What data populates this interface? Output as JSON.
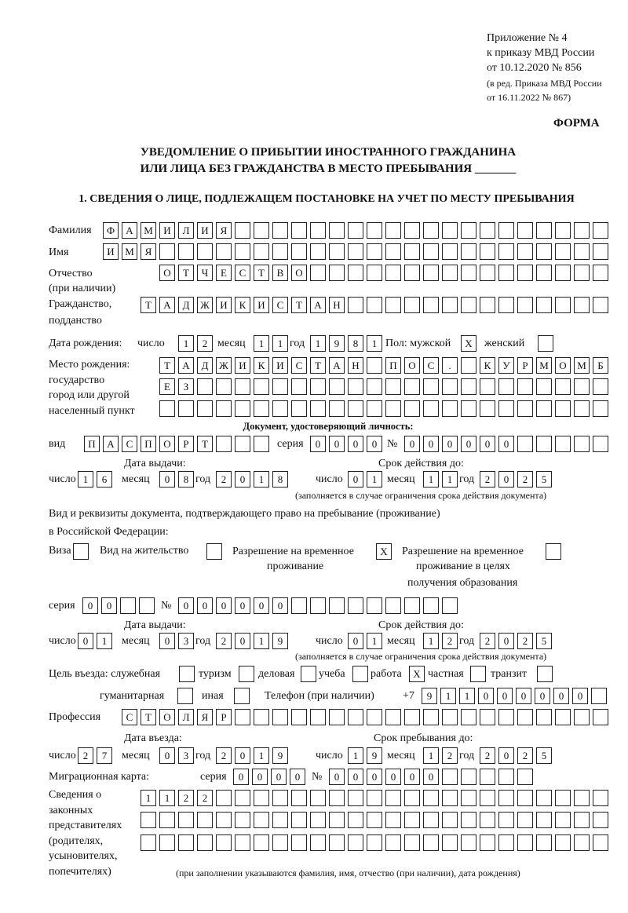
{
  "header": {
    "appendix": "Приложение № 4",
    "order": "к приказу МВД России",
    "order_date": "от 10.12.2020 № 856",
    "edition": "(в ред. Приказа МВД России",
    "edition_date": "от 16.11.2022 № 867)",
    "form_label": "ФОРМА"
  },
  "title": {
    "line1": "УВЕДОМЛЕНИЕ О ПРИБЫТИИ ИНОСТРАННОГО ГРАЖДАНИНА",
    "line2": "ИЛИ ЛИЦА БЕЗ ГРАЖДАНСТВА В МЕСТО ПРЕБЫВАНИЯ _______"
  },
  "section1": "1. СВЕДЕНИЯ О ЛИЦЕ, ПОДЛЕЖАЩЕМ ПОСТАНОВКЕ НА УЧЕТ ПО МЕСТУ ПРЕБЫВАНИЯ",
  "labels": {
    "surname": "Фамилия",
    "name": "Имя",
    "patronymic": "Отчество",
    "patronymic2": "(при наличии)",
    "citizenship": "Гражданство,",
    "citizenship2": "подданство",
    "dob": "Дата рождения:",
    "day": "число",
    "month": "месяц",
    "year": "год",
    "sex": "Пол: мужской",
    "female": "женский",
    "pob1": "Место рождения:",
    "pob2": "государство",
    "pob3": "город или другой",
    "pob4": "населенный пункт",
    "id_doc": "Документ, удостоверяющий личность:",
    "kind": "вид",
    "series": "серия",
    "number": "№",
    "issue_date": "Дата выдачи:",
    "valid_until": "Срок действия до:",
    "valid_note": "(заполняется в случае ограничения срока действия документа)",
    "right_doc1": "Вид и реквизиты документа, подтверждающего право на пребывание (проживание)",
    "right_doc2": "в Российской Федерации:",
    "visa": "Виза",
    "residence": "Вид на жительство",
    "trp1": "Разрешение на временное",
    "trp2": "проживание",
    "trpe1": "Разрешение на временное",
    "trpe2": "проживание в целях",
    "trpe3": "получения образования",
    "purpose": "Цель въезда: служебная",
    "tourism": "туризм",
    "business": "деловая",
    "study": "учеба",
    "work": "работа",
    "private": "частная",
    "transit": "транзит",
    "humanitarian": "гуманитарная",
    "other": "иная",
    "phone": "Телефон (при наличии)",
    "phone_prefix": "+7",
    "profession": "Профессия",
    "entry_date": "Дата въезда:",
    "stay_until": "Срок пребывания до:",
    "migration_card": "Миграционная карта:",
    "rep1": "Сведения о",
    "rep2": "законных",
    "rep3": "представителях",
    "rep4": "(родителях,",
    "rep5": "усыновителях,",
    "rep6": "попечителях)",
    "rep_note": "(при заполнении указываются фамилия, имя, отчество (при наличии), дата рождения)"
  },
  "person": {
    "surname": "ФАМИЛИЯ",
    "name": "ИМЯ",
    "patronymic": "ОТЧЕСТВО",
    "citizenship": "ТАДЖИКИСТАН",
    "dob_day": "12",
    "dob_month": "11",
    "dob_year": "1981",
    "male": "X",
    "female": "",
    "pob_row1": "ТАДЖИКИСТАН ПОС. КУРМОМБ",
    "pob_row2": "ЕЗ",
    "pob_row3": ""
  },
  "id_document": {
    "kind": "ПАСПОРТ",
    "series": "0000",
    "number": "000000",
    "issue_day": "16",
    "issue_month": "08",
    "issue_year": "2018",
    "valid_day": "01",
    "valid_month": "11",
    "valid_year": "2025"
  },
  "right_document": {
    "visa": "",
    "residence": "",
    "trp": "X",
    "trp_education": "",
    "series": "00",
    "number": "000000",
    "issue_day": "01",
    "issue_month": "03",
    "issue_year": "2019",
    "valid_day": "01",
    "valid_month": "12",
    "valid_year": "2025"
  },
  "purpose": {
    "official": "",
    "tourism": "",
    "business": "",
    "study": "",
    "work": "X",
    "private": "",
    "transit": "",
    "humanitarian": "",
    "other": ""
  },
  "phone": "911000000",
  "profession": "СТОЛЯР",
  "entry": {
    "entry_day": "27",
    "entry_month": "03",
    "entry_year": "2019",
    "stay_day": "19",
    "stay_month": "12",
    "stay_year": "2025"
  },
  "migration_card": {
    "series": "0000",
    "number": "000000"
  },
  "representatives": {
    "row1": "1122",
    "row2": "",
    "row3": ""
  }
}
